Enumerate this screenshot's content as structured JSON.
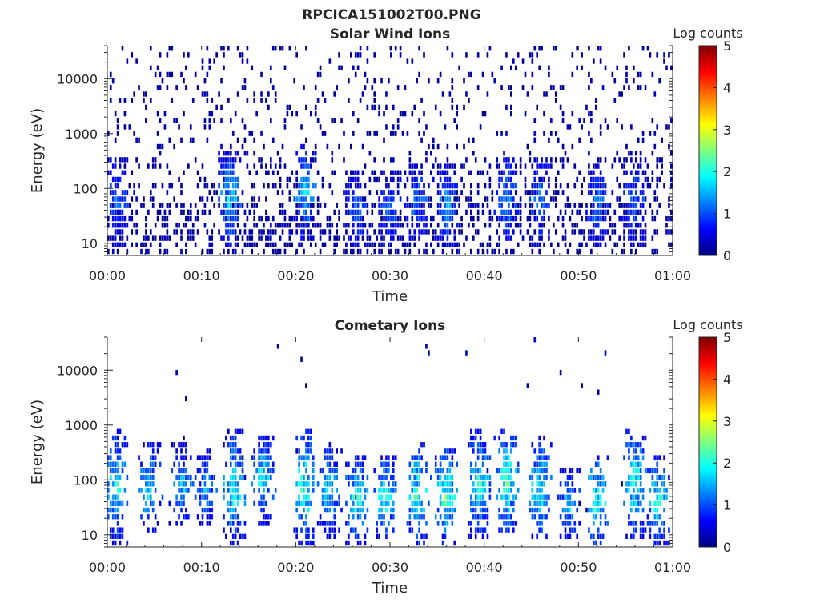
{
  "figure": {
    "title": "RPCICA151002T00.PNG"
  },
  "colormap": [
    "#00007f",
    "#0000ff",
    "#007fff",
    "#00ffff",
    "#7fff7f",
    "#ffff00",
    "#ff7f00",
    "#ff0000",
    "#7f0000"
  ],
  "chart_data": [
    {
      "type": "heatmap",
      "title": "Solar Wind Ions",
      "xlabel": "Time",
      "ylabel": "Energy (eV)",
      "x_ticks": [
        "00:00",
        "00:10",
        "00:20",
        "00:30",
        "00:40",
        "00:50",
        "01:00"
      ],
      "x_range_minutes": [
        0,
        60
      ],
      "y_ticks": [
        "10",
        "100",
        "1000",
        "10000"
      ],
      "y_scale": "log",
      "y_range_eV": [
        6,
        40000
      ],
      "colorbar": {
        "label": "Log counts",
        "ticks": [
          "0",
          "1",
          "2",
          "3",
          "4",
          "5"
        ],
        "range": [
          0,
          5
        ]
      },
      "pattern": "sparse",
      "background_rate": 0.12,
      "bursts": [
        {
          "t": 1.0,
          "e_lo": 8,
          "e_hi": 400,
          "level": 1.3
        },
        {
          "t": 13.0,
          "e_lo": 8,
          "e_hi": 500,
          "level": 1.9
        },
        {
          "t": 21.0,
          "e_lo": 10,
          "e_hi": 600,
          "level": 1.9
        },
        {
          "t": 26.5,
          "e_lo": 8,
          "e_hi": 200,
          "level": 1.4
        },
        {
          "t": 30.0,
          "e_lo": 8,
          "e_hi": 200,
          "level": 1.3
        },
        {
          "t": 33.0,
          "e_lo": 10,
          "e_hi": 300,
          "level": 1.5
        },
        {
          "t": 36.0,
          "e_lo": 8,
          "e_hi": 300,
          "level": 1.7
        },
        {
          "t": 42.5,
          "e_lo": 10,
          "e_hi": 400,
          "level": 1.6
        },
        {
          "t": 46.0,
          "e_lo": 8,
          "e_hi": 400,
          "level": 1.5
        },
        {
          "t": 52.0,
          "e_lo": 8,
          "e_hi": 300,
          "level": 1.5
        },
        {
          "t": 56.0,
          "e_lo": 8,
          "e_hi": 500,
          "level": 1.3
        }
      ]
    },
    {
      "type": "heatmap",
      "title": "Cometary Ions",
      "xlabel": "Time",
      "ylabel": "Energy (eV)",
      "x_ticks": [
        "00:00",
        "00:10",
        "00:20",
        "00:30",
        "00:40",
        "00:50",
        "01:00"
      ],
      "x_range_minutes": [
        0,
        60
      ],
      "y_ticks": [
        "10",
        "100",
        "1000",
        "10000"
      ],
      "y_scale": "log",
      "y_range_eV": [
        6,
        40000
      ],
      "colorbar": {
        "label": "Log counts",
        "ticks": [
          "0",
          "1",
          "2",
          "3",
          "4",
          "5"
        ],
        "range": [
          0,
          5
        ]
      },
      "pattern": "bursts",
      "background_rate": 0.004,
      "bursts": [
        {
          "t": 1.0,
          "e_lo": 6,
          "e_hi": 900,
          "level": 2.3
        },
        {
          "t": 4.5,
          "e_lo": 10,
          "e_hi": 500,
          "level": 2.1
        },
        {
          "t": 8.0,
          "e_lo": 12,
          "e_hi": 500,
          "level": 1.8
        },
        {
          "t": 10.5,
          "e_lo": 12,
          "e_hi": 400,
          "level": 1.7
        },
        {
          "t": 13.5,
          "e_lo": 6,
          "e_hi": 800,
          "level": 2.4
        },
        {
          "t": 16.5,
          "e_lo": 15,
          "e_hi": 700,
          "level": 2.2
        },
        {
          "t": 21.0,
          "e_lo": 6,
          "e_hi": 900,
          "level": 2.6
        },
        {
          "t": 23.5,
          "e_lo": 8,
          "e_hi": 500,
          "level": 2.0
        },
        {
          "t": 26.5,
          "e_lo": 6,
          "e_hi": 300,
          "level": 2.4
        },
        {
          "t": 29.5,
          "e_lo": 8,
          "e_hi": 300,
          "level": 2.3
        },
        {
          "t": 33.0,
          "e_lo": 6,
          "e_hi": 500,
          "level": 2.5
        },
        {
          "t": 36.0,
          "e_lo": 6,
          "e_hi": 400,
          "level": 2.7
        },
        {
          "t": 39.5,
          "e_lo": 8,
          "e_hi": 900,
          "level": 2.3
        },
        {
          "t": 42.5,
          "e_lo": 10,
          "e_hi": 900,
          "level": 2.6
        },
        {
          "t": 46.0,
          "e_lo": 8,
          "e_hi": 600,
          "level": 2.4
        },
        {
          "t": 49.0,
          "e_lo": 8,
          "e_hi": 150,
          "level": 2.0
        },
        {
          "t": 52.0,
          "e_lo": 6,
          "e_hi": 300,
          "level": 2.6
        },
        {
          "t": 56.0,
          "e_lo": 8,
          "e_hi": 900,
          "level": 2.5
        },
        {
          "t": 58.5,
          "e_lo": 6,
          "e_hi": 300,
          "level": 2.3
        }
      ]
    }
  ]
}
